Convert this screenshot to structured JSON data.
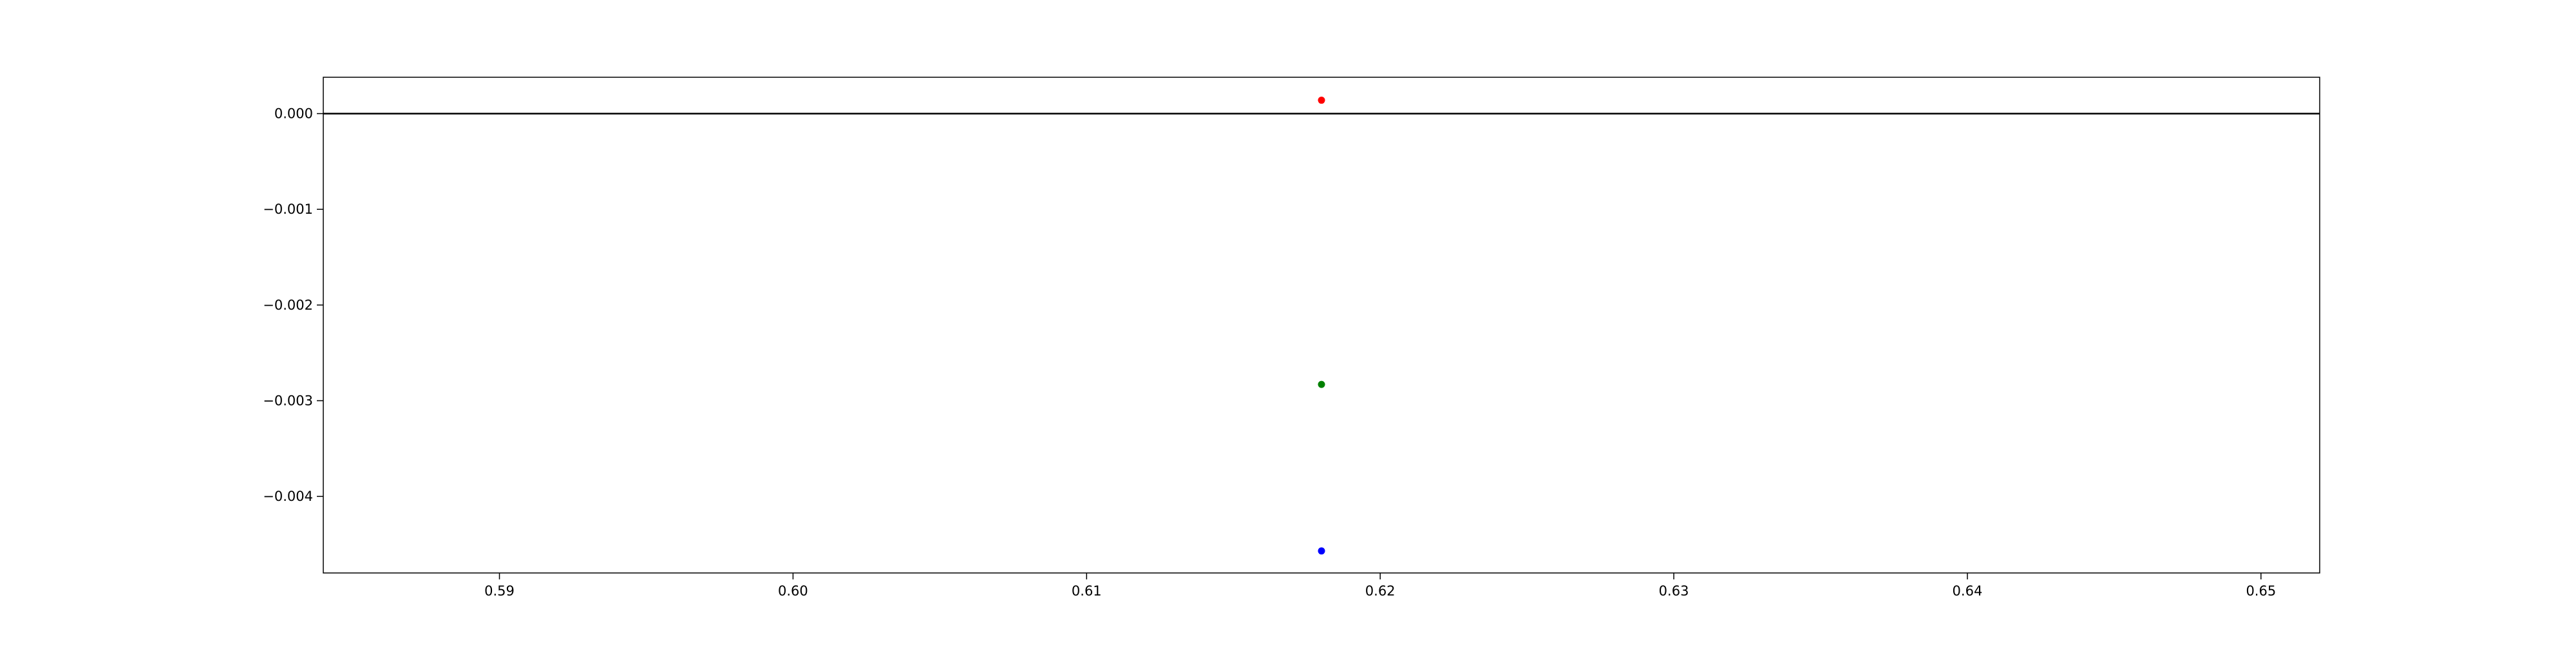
{
  "chart_data": {
    "type": "scatter",
    "title": "",
    "xlabel": "",
    "ylabel": "",
    "xlim": [
      0.584,
      0.652
    ],
    "ylim": [
      -0.0048,
      0.00038
    ],
    "grid": false,
    "x_ticks": [
      {
        "value": 0.59,
        "label": "0.59"
      },
      {
        "value": 0.6,
        "label": "0.60"
      },
      {
        "value": 0.61,
        "label": "0.61"
      },
      {
        "value": 0.62,
        "label": "0.62"
      },
      {
        "value": 0.63,
        "label": "0.63"
      },
      {
        "value": 0.64,
        "label": "0.64"
      },
      {
        "value": 0.65,
        "label": "0.65"
      }
    ],
    "y_ticks": [
      {
        "value": 0.0,
        "label": "0.000"
      },
      {
        "value": -0.001,
        "label": "−0.001"
      },
      {
        "value": -0.002,
        "label": "−0.002"
      },
      {
        "value": -0.003,
        "label": "−0.003"
      },
      {
        "value": -0.004,
        "label": "−0.004"
      }
    ],
    "reference_lines": [
      {
        "axis": "y",
        "value": 0.0,
        "color": "#000000"
      }
    ],
    "series": [
      {
        "name": "red",
        "color": "#ff0000",
        "points": [
          {
            "x": 0.618,
            "y": 0.00014
          }
        ]
      },
      {
        "name": "green",
        "color": "#008000",
        "points": [
          {
            "x": 0.618,
            "y": -0.00283
          }
        ]
      },
      {
        "name": "blue",
        "color": "#0000ff",
        "points": [
          {
            "x": 0.618,
            "y": -0.00457
          }
        ]
      }
    ]
  }
}
